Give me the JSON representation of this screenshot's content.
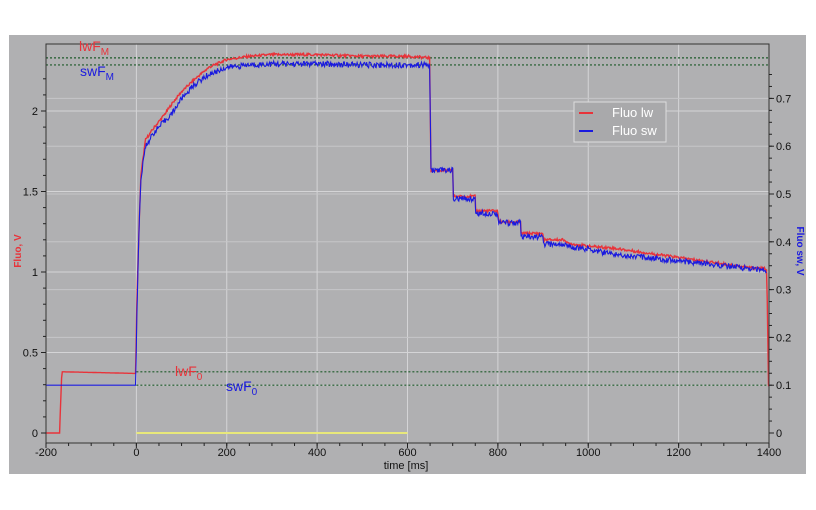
{
  "chart_data": {
    "type": "line",
    "title": "",
    "xlabel": "time [ms]",
    "ylabel_left": "Fluo, V",
    "ylabel_right": "Fluo sw, V",
    "xlim": [
      -200,
      1400
    ],
    "ylim_left": [
      0,
      2.35
    ],
    "ylim_right": [
      0,
      0.78
    ],
    "x_ticks": [
      -200,
      0,
      200,
      400,
      600,
      800,
      1000,
      1200,
      1400
    ],
    "y_ticks_left": [
      0,
      0.5,
      1,
      1.5,
      2
    ],
    "y_ticks_right": [
      0,
      0.1,
      0.2,
      0.3,
      0.4,
      0.5,
      0.6,
      0.7
    ],
    "grid": true,
    "legend_position": "upper right (inside plot)",
    "legend": [
      {
        "name": "Fluo lw",
        "color": "#e8333a",
        "axis": "left"
      },
      {
        "name": "Fluo sw",
        "color": "#1a1adf",
        "axis": "right"
      }
    ],
    "series": [
      {
        "name": "Fluo lw",
        "axis": "left",
        "x": [
          -200,
          -170,
          -165,
          -160,
          -1,
          0,
          5,
          10,
          20,
          40,
          60,
          80,
          100,
          130,
          160,
          200,
          250,
          300,
          400,
          500,
          600,
          650,
          651,
          655,
          700,
          701,
          750,
          751,
          800,
          801,
          850,
          851,
          900,
          901,
          950,
          951,
          1000,
          1050,
          1100,
          1150,
          1200,
          1250,
          1300,
          1350,
          1395,
          1400
        ],
        "values": [
          0.0,
          0.0,
          0.38,
          0.38,
          0.37,
          0.7,
          1.2,
          1.6,
          1.82,
          1.9,
          1.97,
          2.05,
          2.12,
          2.2,
          2.27,
          2.32,
          2.34,
          2.35,
          2.35,
          2.34,
          2.34,
          2.33,
          1.63,
          1.63,
          1.63,
          1.47,
          1.47,
          1.38,
          1.38,
          1.31,
          1.31,
          1.24,
          1.24,
          1.2,
          1.2,
          1.18,
          1.16,
          1.15,
          1.13,
          1.11,
          1.09,
          1.07,
          1.05,
          1.03,
          1.02,
          0.1
        ]
      },
      {
        "name": "Fluo sw",
        "axis": "right",
        "x": [
          -200,
          -1,
          0,
          5,
          10,
          20,
          40,
          60,
          80,
          100,
          130,
          160,
          200,
          250,
          300,
          400,
          500,
          600,
          650,
          651,
          700,
          701,
          750,
          751,
          800,
          801,
          850,
          851,
          900,
          901,
          950,
          951,
          1000,
          1050,
          1100,
          1150,
          1200,
          1250,
          1300,
          1350,
          1395
        ],
        "values": [
          0.1,
          0.1,
          0.2,
          0.4,
          0.53,
          0.6,
          0.63,
          0.65,
          0.67,
          0.7,
          0.73,
          0.75,
          0.765,
          0.77,
          0.772,
          0.772,
          0.77,
          0.77,
          0.77,
          0.55,
          0.55,
          0.49,
          0.49,
          0.46,
          0.46,
          0.44,
          0.44,
          0.41,
          0.41,
          0.395,
          0.395,
          0.39,
          0.385,
          0.375,
          0.37,
          0.365,
          0.36,
          0.355,
          0.35,
          0.345,
          0.34
        ]
      }
    ],
    "reference_lines": [
      {
        "label": "lwF_M",
        "value": 2.33,
        "axis": "left",
        "label_color": "#e8333a"
      },
      {
        "label": "swF_M",
        "value": 0.77,
        "axis": "right",
        "label_color": "#1a1adf"
      },
      {
        "label": "lwF_0",
        "value": 0.38,
        "axis": "left",
        "label_color": "#e8333a"
      },
      {
        "label": "swF_0",
        "value": 0.1,
        "axis": "right",
        "label_color": "#1a1adf"
      }
    ],
    "annotations": [
      {
        "type": "light-pulse bar",
        "x_start": 0,
        "x_end": 600,
        "y": 0,
        "color": "#e8e87a"
      }
    ]
  },
  "labels": {
    "xlabel": "time [ms]",
    "ylabel_left": "Fluo, V",
    "ylabel_right": "Fluo sw, V",
    "lwFM_main": "lwF",
    "lwFM_sub": "M",
    "swFM_main": "swF",
    "swFM_sub": "M",
    "lwF0_main": "lwF",
    "lwF0_sub": "0",
    "swF0_main": "swF",
    "swF0_sub": "0",
    "legend_lw": "Fluo lw",
    "legend_sw": "Fluo sw"
  },
  "colors": {
    "lw": "#e8333a",
    "sw": "#1a1adf",
    "panel": "#b0b0b2",
    "grid": "#d4d4d6",
    "pulse": "#e8e87a"
  }
}
